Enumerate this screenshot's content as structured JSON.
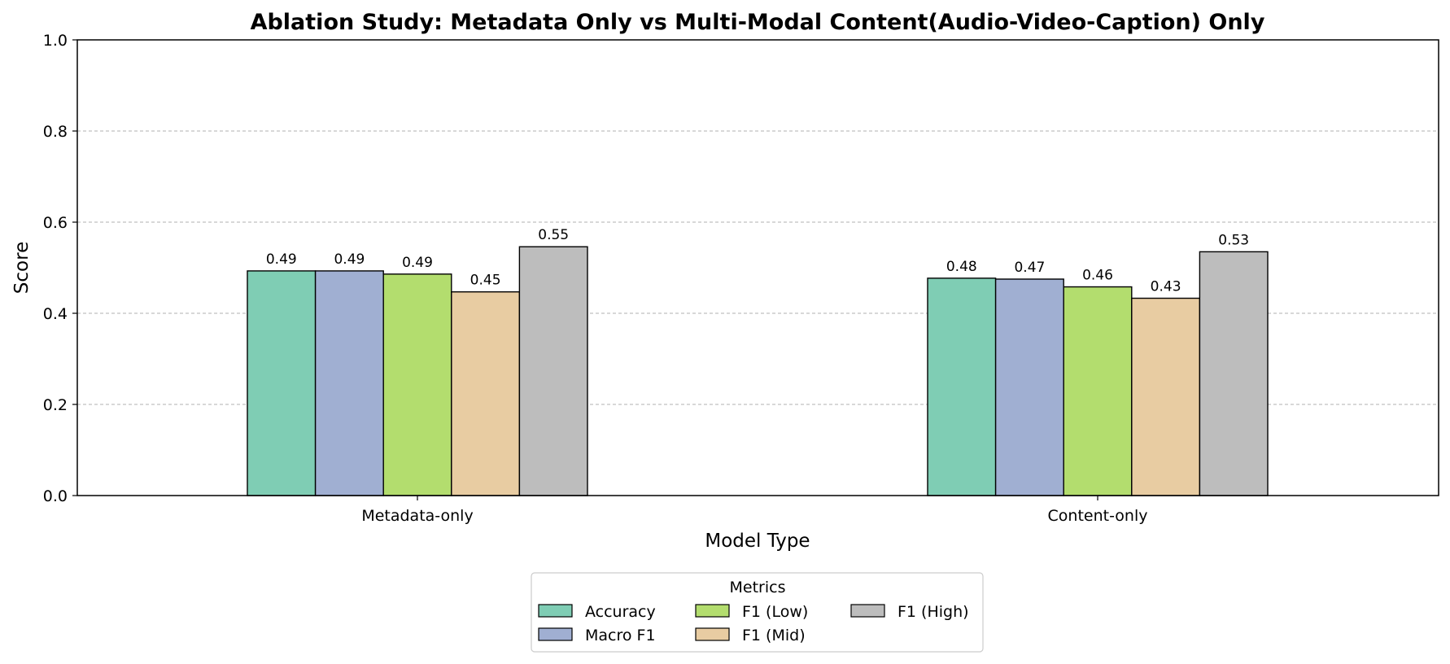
{
  "chart_data": {
    "type": "bar",
    "title": "Ablation Study: Metadata Only vs Multi-Modal Content(Audio-Video-Caption) Only",
    "xlabel": "Model Type",
    "ylabel": "Score",
    "ylim": [
      0,
      1.0
    ],
    "yticks": [
      "0.0",
      "0.2",
      "0.4",
      "0.6",
      "0.8",
      "1.0"
    ],
    "grid": "y-dashed",
    "categories": [
      "Metadata-only",
      "Content-only"
    ],
    "series": [
      {
        "name": "Accuracy",
        "color": "#7fcdb4",
        "values": [
          0.493,
          0.477
        ],
        "labels": [
          "0.49",
          "0.48"
        ]
      },
      {
        "name": "Macro F1",
        "color": "#a0afd2",
        "values": [
          0.493,
          0.475
        ],
        "labels": [
          "0.49",
          "0.47"
        ]
      },
      {
        "name": "F1 (Low)",
        "color": "#b3dd6e",
        "values": [
          0.486,
          0.458
        ],
        "labels": [
          "0.49",
          "0.46"
        ]
      },
      {
        "name": "F1 (Mid)",
        "color": "#e8cca2",
        "values": [
          0.447,
          0.433
        ],
        "labels": [
          "0.45",
          "0.43"
        ]
      },
      {
        "name": "F1 (High)",
        "color": "#bdbdbd",
        "values": [
          0.546,
          0.535
        ],
        "labels": [
          "0.55",
          "0.53"
        ]
      }
    ],
    "legend": {
      "title": "Metrics",
      "placement": "bottom-center",
      "columns": 3
    }
  }
}
